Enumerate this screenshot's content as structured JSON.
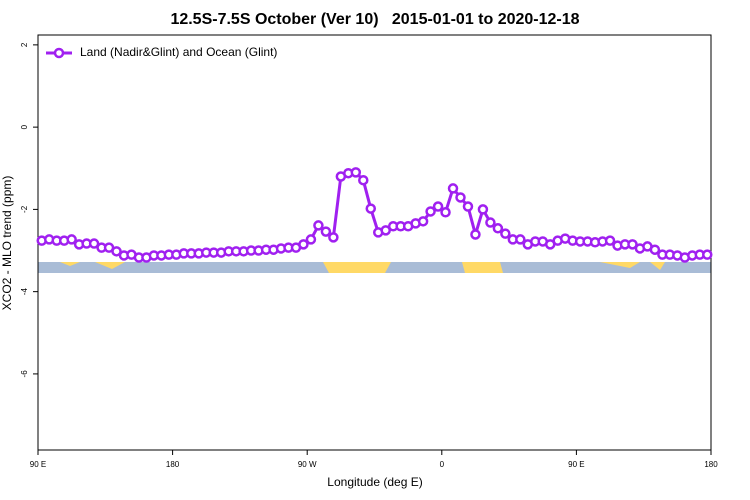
{
  "chart_data": {
    "type": "line",
    "title": "12.5S-7.5S October (Ver 10)   2015-01-01 to 2020-12-18",
    "x_label": "Longitude (deg E)",
    "y_label": "XCO2 - MLO trend (ppm)",
    "xlim": [
      90,
      540
    ],
    "xticks": [
      {
        "value": 90,
        "label": "90 E"
      },
      180,
      {
        "value": 270,
        "label": "90 W"
      },
      {
        "value": 360,
        "label": "0"
      },
      {
        "value": 450,
        "label": "90 E"
      },
      {
        "value": 540,
        "label": "180"
      }
    ],
    "ylim": [
      -7.85,
      2.24
    ],
    "yticks": [
      -6,
      -4,
      -2,
      0,
      2
    ],
    "legend": "top-left",
    "x": [
      92.5,
      97.5,
      102.5,
      107.5,
      112.5,
      117.5,
      122.5,
      127.5,
      132.5,
      137.5,
      142.5,
      147.5,
      152.5,
      157.5,
      162.5,
      167.5,
      172.5,
      177.5,
      182.5,
      187.5,
      192.5,
      197.5,
      202.5,
      207.5,
      212.5,
      217.5,
      222.5,
      227.5,
      232.5,
      237.5,
      242.5,
      247.5,
      252.5,
      257.5,
      262.5,
      267.5,
      272.5,
      277.5,
      282.5,
      287.5,
      292.5,
      297.5,
      302.5,
      307.5,
      312.5,
      317.5,
      322.5,
      327.5,
      332.5,
      337.5,
      342.5,
      347.5,
      352.5,
      357.5,
      362.5,
      367.5,
      372.5,
      377.5,
      382.5,
      387.5,
      392.5,
      397.5,
      402.5,
      407.5,
      412.5,
      417.5,
      422.5,
      427.5,
      432.5,
      437.5,
      442.5,
      447.5,
      452.5,
      457.5,
      462.5,
      467.5,
      472.5,
      477.5,
      482.5,
      487.5,
      492.5,
      497.5,
      502.5,
      507.5,
      512.5,
      517.5,
      522.5,
      527.5,
      532.5,
      537.5
    ],
    "series": [
      {
        "name": "Land (Nadir&Glint) and Ocean (Glint)",
        "color": "#a020f0",
        "values": [
          -2.76,
          -2.73,
          -2.76,
          -2.76,
          -2.73,
          -2.85,
          -2.83,
          -2.83,
          -2.93,
          -2.93,
          -3.02,
          -3.12,
          -3.1,
          -3.17,
          -3.17,
          -3.12,
          -3.12,
          -3.1,
          -3.1,
          -3.07,
          -3.07,
          -3.07,
          -3.05,
          -3.05,
          -3.05,
          -3.02,
          -3.02,
          -3.02,
          -3.0,
          -3.0,
          -2.98,
          -2.98,
          -2.95,
          -2.93,
          -2.93,
          -2.85,
          -2.73,
          -2.39,
          -2.54,
          -2.68,
          -1.2,
          -1.12,
          -1.1,
          -1.29,
          -1.98,
          -2.56,
          -2.51,
          -2.41,
          -2.41,
          -2.41,
          -2.34,
          -2.29,
          -2.05,
          -1.93,
          -2.07,
          -1.49,
          -1.71,
          -1.93,
          -2.61,
          -2.0,
          -2.32,
          -2.46,
          -2.59,
          -2.73,
          -2.73,
          -2.85,
          -2.78,
          -2.78,
          -2.85,
          -2.76,
          -2.71,
          -2.76,
          -2.78,
          -2.78,
          -2.8,
          -2.78,
          -2.76,
          -2.88,
          -2.85,
          -2.85,
          -2.95,
          -2.9,
          -2.98,
          -3.1,
          -3.1,
          -3.12,
          -3.17,
          -3.12,
          -3.1,
          -3.1
        ]
      }
    ]
  }
}
